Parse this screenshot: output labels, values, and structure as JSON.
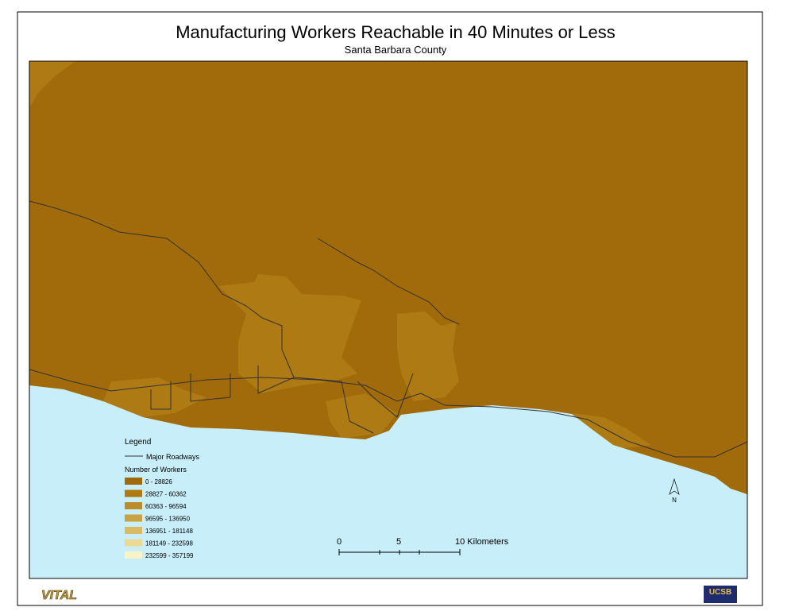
{
  "header": {
    "title": "Manufacturing Workers Reachable in 40 Minutes or Less",
    "subtitle": "Santa Barbara County"
  },
  "legend": {
    "title": "Legend",
    "roads": "Major Roadways",
    "workers_title": "Number of Workers",
    "classes": [
      {
        "label": "0 - 28826",
        "color": "#a16a0a"
      },
      {
        "label": "28827 - 60362",
        "color": "#ad7a14"
      },
      {
        "label": "60363 - 96594",
        "color": "#bb8c2c"
      },
      {
        "label": "96595 - 136950",
        "color": "#c9a244"
      },
      {
        "label": "136951 - 181148",
        "color": "#d9bb64"
      },
      {
        "label": "181149 - 232598",
        "color": "#ecd994"
      },
      {
        "label": "232599 - 357199",
        "color": "#fbf3c8"
      }
    ]
  },
  "scale_bar": {
    "labels": [
      "0",
      "5",
      "10 Kilometers"
    ]
  },
  "north": "N",
  "logos": {
    "left": "VITAL",
    "right": "UCSB"
  }
}
